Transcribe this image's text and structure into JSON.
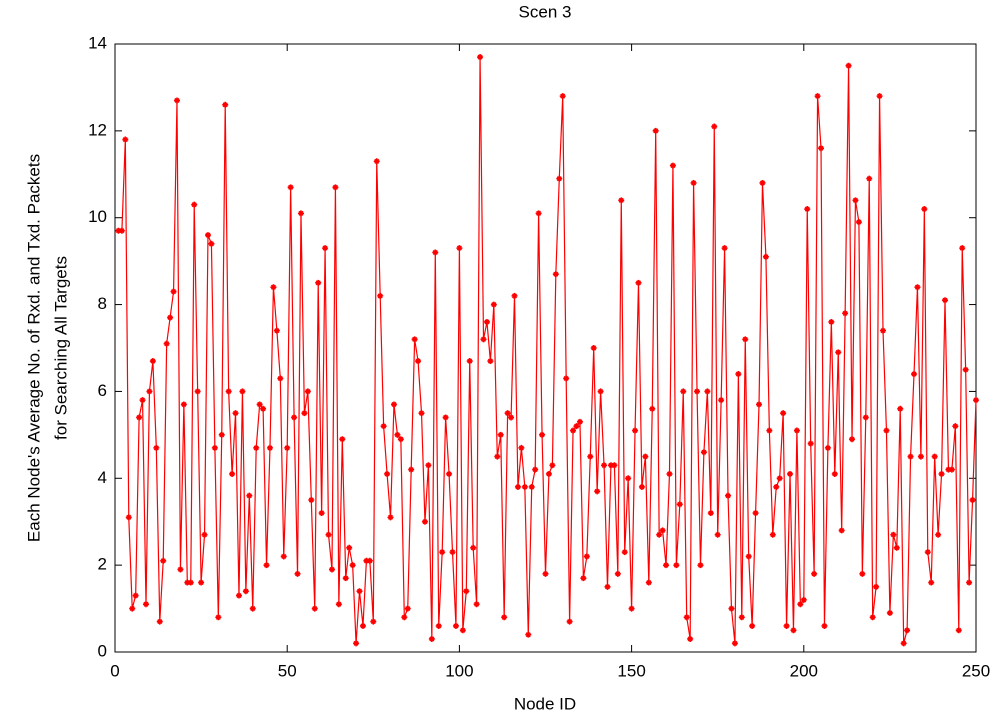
{
  "chart_data": {
    "type": "line",
    "title": "Scen 3",
    "xlabel": "Node ID",
    "ylabel": [
      "Each Node's Average No. of Rxd. and Txd. Packets",
      "for Searching All Targets"
    ],
    "x": [
      1,
      2,
      3,
      4,
      5,
      6,
      7,
      8,
      9,
      10,
      11,
      12,
      13,
      14,
      15,
      16,
      17,
      18,
      19,
      20,
      21,
      22,
      23,
      24,
      25,
      26,
      27,
      28,
      29,
      30,
      31,
      32,
      33,
      34,
      35,
      36,
      37,
      38,
      39,
      40,
      41,
      42,
      43,
      44,
      45,
      46,
      47,
      48,
      49,
      50,
      51,
      52,
      53,
      54,
      55,
      56,
      57,
      58,
      59,
      60,
      61,
      62,
      63,
      64,
      65,
      66,
      67,
      68,
      69,
      70,
      71,
      72,
      73,
      74,
      75,
      76,
      77,
      78,
      79,
      80,
      81,
      82,
      83,
      84,
      85,
      86,
      87,
      88,
      89,
      90,
      91,
      92,
      93,
      94,
      95,
      96,
      97,
      98,
      99,
      100,
      101,
      102,
      103,
      104,
      105,
      106,
      107,
      108,
      109,
      110,
      111,
      112,
      113,
      114,
      115,
      116,
      117,
      118,
      119,
      120,
      121,
      122,
      123,
      124,
      125,
      126,
      127,
      128,
      129,
      130,
      131,
      132,
      133,
      134,
      135,
      136,
      137,
      138,
      139,
      140,
      141,
      142,
      143,
      144,
      145,
      146,
      147,
      148,
      149,
      150,
      151,
      152,
      153,
      154,
      155,
      156,
      157,
      158,
      159,
      160,
      161,
      162,
      163,
      164,
      165,
      166,
      167,
      168,
      169,
      170,
      171,
      172,
      173,
      174,
      175,
      176,
      177,
      178,
      179,
      180,
      181,
      182,
      183,
      184,
      185,
      186,
      187,
      188,
      189,
      190,
      191,
      192,
      193,
      194,
      195,
      196,
      197,
      198,
      199,
      200,
      201,
      202,
      203,
      204,
      205,
      206,
      207,
      208,
      209,
      210,
      211,
      212,
      213,
      214,
      215,
      216,
      217,
      218,
      219,
      220,
      221,
      222,
      223,
      224,
      225,
      226,
      227,
      228,
      229,
      230,
      231,
      232,
      233,
      234,
      235,
      236,
      237,
      238,
      239,
      240,
      241,
      242,
      243,
      244,
      245,
      246,
      247,
      248,
      249,
      250
    ],
    "series": [
      {
        "color": "#ff0000",
        "values": [
          9.7,
          9.7,
          11.8,
          3.1,
          1.0,
          1.3,
          5.4,
          5.8,
          1.1,
          6.0,
          6.7,
          4.7,
          0.7,
          2.1,
          7.1,
          7.7,
          8.3,
          12.7,
          1.9,
          5.7,
          1.6,
          1.6,
          10.3,
          6.0,
          1.6,
          2.7,
          9.6,
          9.4,
          4.7,
          0.8,
          5.0,
          12.6,
          6.0,
          4.1,
          5.5,
          1.3,
          6.0,
          1.4,
          3.6,
          1.0,
          4.7,
          5.7,
          5.6,
          2.0,
          4.7,
          8.4,
          7.4,
          6.3,
          2.2,
          4.7,
          10.7,
          5.4,
          1.8,
          10.1,
          5.5,
          6.0,
          3.5,
          1.0,
          8.5,
          3.2,
          9.3,
          2.7,
          1.9,
          10.7,
          1.1,
          4.9,
          1.7,
          2.4,
          2.0,
          0.2,
          1.4,
          0.6,
          2.1,
          2.1,
          0.7,
          11.3,
          8.2,
          5.2,
          4.1,
          3.1,
          5.7,
          5.0,
          4.9,
          0.8,
          1.0,
          4.2,
          7.2,
          6.7,
          5.5,
          3.0,
          4.3,
          0.3,
          9.2,
          0.6,
          2.3,
          5.4,
          4.1,
          2.3,
          0.6,
          9.3,
          0.5,
          1.4,
          6.7,
          2.4,
          1.1,
          13.7,
          7.2,
          7.6,
          6.7,
          8.0,
          4.5,
          5.0,
          0.8,
          5.5,
          5.4,
          8.2,
          3.8,
          4.7,
          3.8,
          0.4,
          3.8,
          4.2,
          10.1,
          5.0,
          1.8,
          4.1,
          4.3,
          8.7,
          10.9,
          12.8,
          6.3,
          0.7,
          5.1,
          5.2,
          5.3,
          1.7,
          2.2,
          4.5,
          7.0,
          3.7,
          6.0,
          4.3,
          1.5,
          4.3,
          4.3,
          1.8,
          10.4,
          2.3,
          4.0,
          1.0,
          5.1,
          8.5,
          3.8,
          4.5,
          1.6,
          5.6,
          12.0,
          2.7,
          2.8,
          2.0,
          4.1,
          11.2,
          2.0,
          3.4,
          6.0,
          0.8,
          0.3,
          10.8,
          6.0,
          2.0,
          4.6,
          6.0,
          3.2,
          12.1,
          2.7,
          5.8,
          9.3,
          3.6,
          1.0,
          0.2,
          6.4,
          0.8,
          7.2,
          2.2,
          0.6,
          3.2,
          5.7,
          10.8,
          9.1,
          5.1,
          2.7,
          3.8,
          4.0,
          5.5,
          0.6,
          4.1,
          0.5,
          5.1,
          1.1,
          1.2,
          10.2,
          4.8,
          1.8,
          12.8,
          11.6,
          0.6,
          4.7,
          7.6,
          4.1,
          6.9,
          2.8,
          7.8,
          13.5,
          4.9,
          10.4,
          9.9,
          1.8,
          5.4,
          10.9,
          0.8,
          1.5,
          12.8,
          7.4,
          5.1,
          0.9,
          2.7,
          2.4,
          5.6,
          0.2,
          0.5,
          4.5,
          6.4,
          8.4,
          4.5,
          10.2,
          2.3,
          1.6,
          4.5,
          2.7,
          4.1,
          8.1,
          4.2,
          4.2,
          5.2,
          0.5,
          9.3,
          6.5,
          1.6,
          3.5,
          5.8
        ]
      }
    ],
    "xlim": [
      0,
      250
    ],
    "xticks": [
      0,
      50,
      100,
      150,
      200,
      250
    ],
    "ylim": [
      0,
      14
    ],
    "yticks": [
      0,
      2,
      4,
      6,
      8,
      10,
      12,
      14
    ],
    "grid": false
  }
}
